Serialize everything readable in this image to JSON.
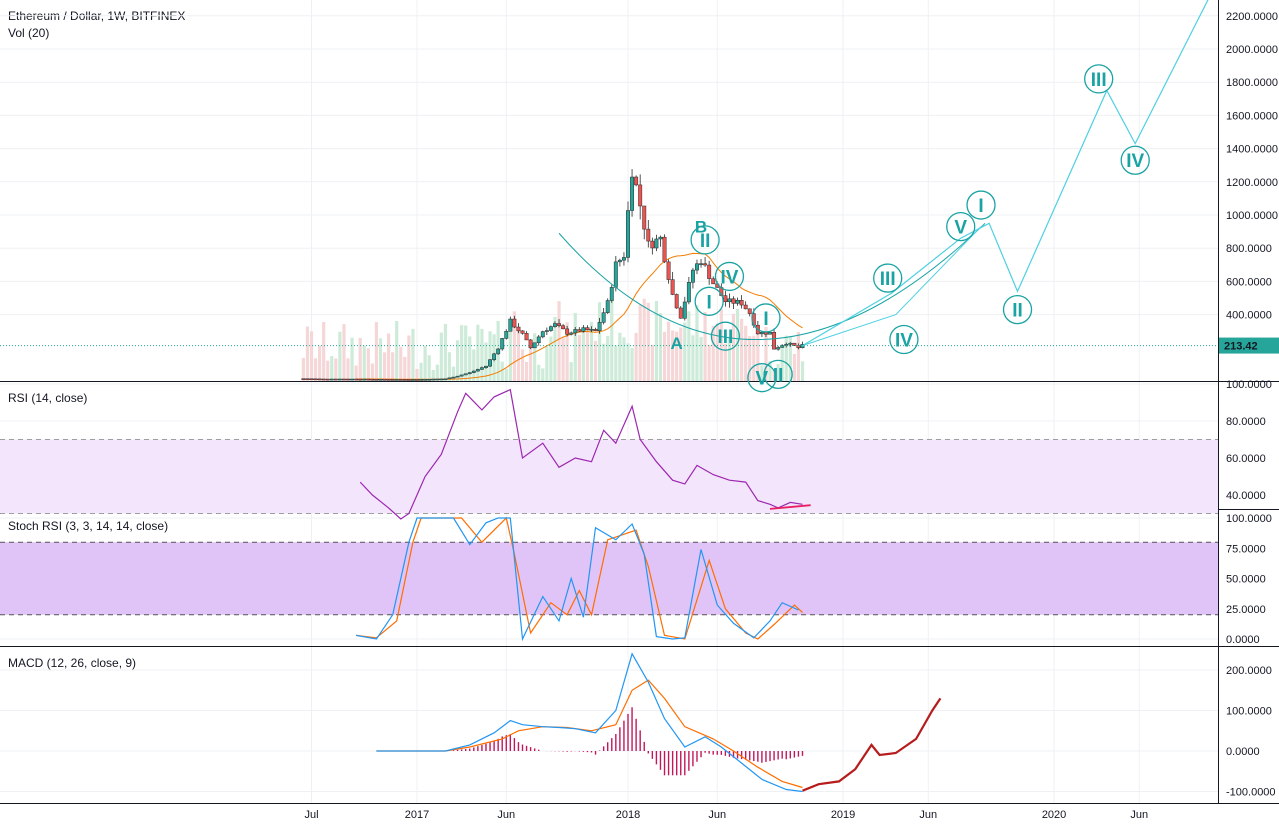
{
  "header": {
    "title": "Ethereum / Dollar, 1W, BITFINEX",
    "volume_label": "Vol (20)"
  },
  "price_tag": {
    "value": "213.42",
    "price": 213.42,
    "color": "#26a69a"
  },
  "colors": {
    "up": "#26a69a",
    "down": "#ef5350",
    "wave": "#1aa3a3",
    "projection": "#4dd0e1",
    "ma": "#f57c00",
    "rsi": "#9c27b0",
    "stoch_k": "#2196f3",
    "stoch_d": "#ff6d00",
    "macd": "#2196f3",
    "signal": "#ff6d00",
    "hist": "#c2185b",
    "forecast": "#b71c1c",
    "band": "#e1c4f7"
  },
  "time_axis": {
    "labels": [
      "Jul",
      "2017",
      "Jun",
      "2018",
      "Jun",
      "2019",
      "Jun",
      "2020",
      "Jun"
    ]
  },
  "chart_data": [
    {
      "type": "candlestick",
      "title": "Ethereum / Dollar, 1W, BITFINEX",
      "ylim": [
        0,
        2300
      ],
      "yticks": [
        "2200.0000",
        "2000.0000",
        "1800.0000",
        "1600.0000",
        "1400.0000",
        "1200.0000",
        "1000.0000",
        "800.0000",
        "600.0000",
        "400.0000"
      ],
      "close_path": [
        [
          "2016-06-20",
          14
        ],
        [
          "2016-07-18",
          12
        ],
        [
          "2016-09-05",
          12
        ],
        [
          "2016-11-07",
          10
        ],
        [
          "2017-01-02",
          9
        ],
        [
          "2017-02-20",
          13
        ],
        [
          "2017-03-13",
          30
        ],
        [
          "2017-04-03",
          50
        ],
        [
          "2017-05-01",
          90
        ],
        [
          "2017-05-22",
          200
        ],
        [
          "2017-06-12",
          360
        ],
        [
          "2017-07-03",
          280
        ],
        [
          "2017-07-17",
          200
        ],
        [
          "2017-08-07",
          300
        ],
        [
          "2017-08-28",
          340
        ],
        [
          "2017-09-18",
          290
        ],
        [
          "2017-10-16",
          310
        ],
        [
          "2017-11-06",
          300
        ],
        [
          "2017-11-27",
          470
        ],
        [
          "2017-12-11",
          700
        ],
        [
          "2017-12-25",
          760
        ],
        [
          "2018-01-08",
          1280
        ],
        [
          "2018-01-22",
          1060
        ],
        [
          "2018-02-05",
          820
        ],
        [
          "2018-02-26",
          860
        ],
        [
          "2018-03-19",
          520
        ],
        [
          "2018-04-02",
          390
        ],
        [
          "2018-04-23",
          670
        ],
        [
          "2018-05-07",
          730
        ],
        [
          "2018-05-28",
          590
        ],
        [
          "2018-06-18",
          480
        ],
        [
          "2018-07-16",
          470
        ],
        [
          "2018-07-30",
          410
        ],
        [
          "2018-08-13",
          290
        ],
        [
          "2018-09-03",
          290
        ],
        [
          "2018-09-10",
          195
        ],
        [
          "2018-10-01",
          230
        ],
        [
          "2018-10-22",
          200
        ],
        [
          "2018-10-29",
          213.42
        ]
      ],
      "waves": [
        {
          "label": "A",
          "date": "2018-03-26",
          "price": 230,
          "circled": false
        },
        {
          "label": "B",
          "date": "2018-05-07",
          "price": 930,
          "circled": false
        },
        {
          "label": "II",
          "date": "2018-05-14",
          "price": 850,
          "circled": true
        },
        {
          "label": "I",
          "date": "2018-05-21",
          "price": 480,
          "circled": true
        },
        {
          "label": "IV",
          "date": "2018-06-25",
          "price": 630,
          "circled": true
        },
        {
          "label": "III",
          "date": "2018-06-18",
          "price": 270,
          "circled": true
        },
        {
          "label": "I",
          "date": "2018-08-27",
          "price": 380,
          "circled": true
        },
        {
          "label": "V",
          "date": "2018-08-20",
          "price": 20,
          "circled": true
        },
        {
          "label": "II",
          "date": "2018-09-17",
          "price": 40,
          "circled": true
        },
        {
          "label": "III",
          "date": "2019-03-25",
          "price": 620,
          "circled": true
        },
        {
          "label": "IV",
          "date": "2019-04-22",
          "price": 250,
          "circled": true
        },
        {
          "label": "V",
          "date": "2019-07-29",
          "price": 930,
          "circled": true
        },
        {
          "label": "I",
          "date": "2019-09-02",
          "price": 1060,
          "circled": true
        },
        {
          "label": "II",
          "date": "2019-11-04",
          "price": 430,
          "circled": true
        },
        {
          "label": "III",
          "date": "2020-03-23",
          "price": 1820,
          "circled": true
        },
        {
          "label": "IV",
          "date": "2020-05-25",
          "price": 1330,
          "circled": true
        }
      ],
      "projection_path": [
        [
          "2018-10-29",
          213
        ],
        [
          "2019-04-01",
          530
        ],
        [
          "2019-07-29",
          860
        ],
        [
          "2019-09-16",
          950
        ],
        [
          "2019-11-04",
          540
        ],
        [
          "2020-04-06",
          1750
        ],
        [
          "2020-05-25",
          1430
        ],
        [
          "2020-09-28",
          2300
        ]
      ]
    },
    {
      "type": "line",
      "title": "RSI (14, close)",
      "ylim": [
        25,
        100
      ],
      "yticks": [
        "100.0000",
        "80.0000",
        "60.0000",
        "40.0000"
      ],
      "band": [
        30,
        70
      ],
      "series": [
        {
          "name": "RSI",
          "points": [
            [
              "2016-09-26",
              47
            ],
            [
              "2016-10-17",
              40
            ],
            [
              "2016-11-14",
              33
            ],
            [
              "2016-12-05",
              27
            ],
            [
              "2016-12-19",
              30
            ],
            [
              "2017-01-16",
              50
            ],
            [
              "2017-02-13",
              62
            ],
            [
              "2017-03-13",
              85
            ],
            [
              "2017-03-27",
              95
            ],
            [
              "2017-04-24",
              86
            ],
            [
              "2017-05-15",
              93
            ],
            [
              "2017-06-12",
              97
            ],
            [
              "2017-07-03",
              60
            ],
            [
              "2017-08-07",
              68
            ],
            [
              "2017-09-04",
              55
            ],
            [
              "2017-10-02",
              60
            ],
            [
              "2017-10-30",
              58
            ],
            [
              "2017-11-20",
              75
            ],
            [
              "2017-12-11",
              68
            ],
            [
              "2018-01-08",
              88
            ],
            [
              "2018-01-22",
              70
            ],
            [
              "2018-02-19",
              58
            ],
            [
              "2018-03-19",
              48
            ],
            [
              "2018-04-09",
              46
            ],
            [
              "2018-04-30",
              56
            ],
            [
              "2018-05-28",
              51
            ],
            [
              "2018-06-25",
              48
            ],
            [
              "2018-07-23",
              47
            ],
            [
              "2018-08-13",
              37
            ],
            [
              "2018-09-03",
              35
            ],
            [
              "2018-09-17",
              33
            ],
            [
              "2018-10-08",
              36
            ],
            [
              "2018-10-29",
              35
            ]
          ]
        }
      ],
      "trendline": [
        [
          "2018-09-03",
          32.5
        ],
        [
          "2018-11-12",
          34.5
        ]
      ]
    },
    {
      "type": "line",
      "title": "Stoch RSI (3, 3, 14, 14, close)",
      "ylim": [
        -5,
        103
      ],
      "yticks": [
        "100.0000",
        "75.0000",
        "50.0000",
        "25.0000",
        "0.0000"
      ],
      "band": [
        20,
        80
      ],
      "series": [
        {
          "name": "K",
          "points": [
            [
              "2016-09-19",
              3
            ],
            [
              "2016-10-24",
              0
            ],
            [
              "2016-11-21",
              20
            ],
            [
              "2016-12-19",
              80
            ],
            [
              "2017-01-02",
              100
            ],
            [
              "2017-03-06",
              100
            ],
            [
              "2017-04-03",
              78
            ],
            [
              "2017-05-01",
              96
            ],
            [
              "2017-05-22",
              100
            ],
            [
              "2017-06-12",
              100
            ],
            [
              "2017-07-03",
              0
            ],
            [
              "2017-08-07",
              35
            ],
            [
              "2017-09-04",
              15
            ],
            [
              "2017-09-25",
              50
            ],
            [
              "2017-10-16",
              18
            ],
            [
              "2017-11-06",
              92
            ],
            [
              "2017-12-11",
              82
            ],
            [
              "2018-01-08",
              95
            ],
            [
              "2018-01-29",
              70
            ],
            [
              "2018-02-19",
              2
            ],
            [
              "2018-03-19",
              0
            ],
            [
              "2018-04-09",
              1
            ],
            [
              "2018-05-07",
              74
            ],
            [
              "2018-06-04",
              28
            ],
            [
              "2018-07-02",
              13
            ],
            [
              "2018-08-06",
              1
            ],
            [
              "2018-09-03",
              15
            ],
            [
              "2018-09-24",
              30
            ],
            [
              "2018-10-22",
              24
            ]
          ]
        },
        {
          "name": "D",
          "points": [
            [
              "2016-09-19",
              3
            ],
            [
              "2016-10-24",
              1
            ],
            [
              "2016-11-28",
              15
            ],
            [
              "2016-12-26",
              80
            ],
            [
              "2017-01-09",
              100
            ],
            [
              "2017-03-20",
              100
            ],
            [
              "2017-04-24",
              80
            ],
            [
              "2017-06-05",
              100
            ],
            [
              "2017-06-19",
              70
            ],
            [
              "2017-07-17",
              5
            ],
            [
              "2017-08-21",
              30
            ],
            [
              "2017-09-18",
              20
            ],
            [
              "2017-10-09",
              40
            ],
            [
              "2017-10-30",
              20
            ],
            [
              "2017-11-27",
              82
            ],
            [
              "2018-01-15",
              90
            ],
            [
              "2018-02-05",
              60
            ],
            [
              "2018-03-05",
              3
            ],
            [
              "2018-04-09",
              0
            ],
            [
              "2018-05-21",
              65
            ],
            [
              "2018-06-18",
              25
            ],
            [
              "2018-07-23",
              5
            ],
            [
              "2018-08-13",
              0
            ],
            [
              "2018-09-10",
              12
            ],
            [
              "2018-10-15",
              28
            ],
            [
              "2018-10-29",
              22
            ]
          ]
        }
      ]
    },
    {
      "type": "line",
      "title": "MACD (12, 26, close, 9)",
      "ylim": [
        -110,
        230
      ],
      "yticks": [
        "200.0000",
        "100.0000",
        "0.0000",
        "-100.0000"
      ],
      "series": [
        {
          "name": "MACD",
          "points": [
            [
              "2016-10-24",
              0
            ],
            [
              "2017-02-20",
              0
            ],
            [
              "2017-04-03",
              15
            ],
            [
              "2017-05-15",
              45
            ],
            [
              "2017-06-12",
              75
            ],
            [
              "2017-07-03",
              65
            ],
            [
              "2017-08-07",
              60
            ],
            [
              "2017-09-04",
              58
            ],
            [
              "2017-10-02",
              55
            ],
            [
              "2017-11-06",
              45
            ],
            [
              "2017-12-11",
              100
            ],
            [
              "2018-01-08",
              240
            ],
            [
              "2018-02-05",
              170
            ],
            [
              "2018-03-05",
              80
            ],
            [
              "2018-04-09",
              10
            ],
            [
              "2018-05-14",
              35
            ],
            [
              "2018-06-11",
              10
            ],
            [
              "2018-07-16",
              -30
            ],
            [
              "2018-08-20",
              -70
            ],
            [
              "2018-10-01",
              -95
            ],
            [
              "2018-10-29",
              -100
            ]
          ]
        },
        {
          "name": "Signal",
          "points": [
            [
              "2016-10-24",
              0
            ],
            [
              "2017-02-20",
              0
            ],
            [
              "2017-04-03",
              10
            ],
            [
              "2017-05-29",
              30
            ],
            [
              "2017-06-26",
              50
            ],
            [
              "2017-08-07",
              60
            ],
            [
              "2017-09-18",
              58
            ],
            [
              "2017-10-30",
              50
            ],
            [
              "2017-12-11",
              65
            ],
            [
              "2018-01-08",
              150
            ],
            [
              "2018-02-05",
              175
            ],
            [
              "2018-03-05",
              130
            ],
            [
              "2018-04-09",
              60
            ],
            [
              "2018-05-28",
              30
            ],
            [
              "2018-07-02",
              0
            ],
            [
              "2018-08-13",
              -40
            ],
            [
              "2018-09-24",
              -75
            ],
            [
              "2018-10-29",
              -90
            ]
          ]
        },
        {
          "name": "Forecast",
          "points": [
            [
              "2018-10-29",
              -98
            ],
            [
              "2018-11-26",
              -82
            ],
            [
              "2018-12-31",
              -75
            ],
            [
              "2019-01-28",
              -45
            ],
            [
              "2019-02-25",
              15
            ],
            [
              "2019-03-11",
              -10
            ],
            [
              "2019-04-08",
              -5
            ],
            [
              "2019-05-13",
              30
            ],
            [
              "2019-06-10",
              100
            ],
            [
              "2019-06-24",
              130
            ]
          ]
        }
      ]
    }
  ]
}
